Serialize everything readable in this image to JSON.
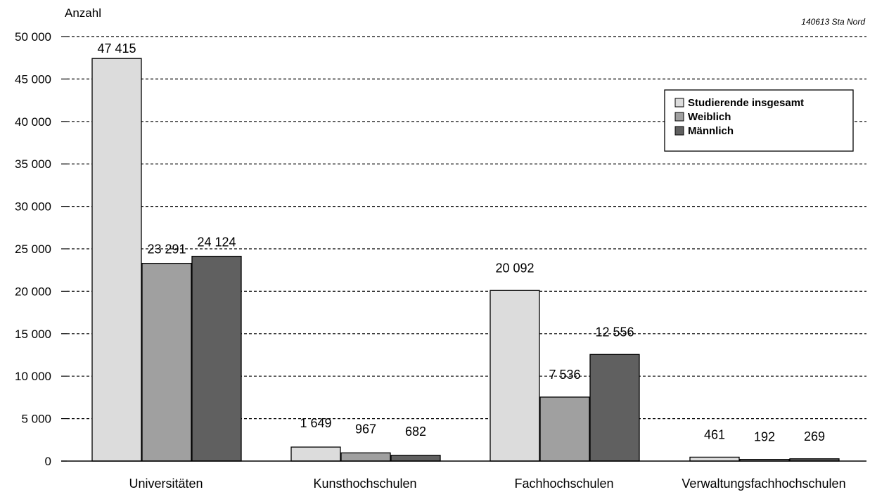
{
  "chart_data": {
    "type": "bar",
    "ylabel": "Anzahl",
    "source_note": "140613 Sta Nord",
    "categories": [
      "Universitäten",
      "Kunsthochschulen",
      "Fachhochschulen",
      "Verwaltungsfachhochschulen"
    ],
    "series": [
      {
        "name": "Studierende insgesamt",
        "values": [
          47415,
          1649,
          20092,
          461
        ],
        "labels": [
          "47 415",
          "1 649",
          "20 092",
          "461"
        ],
        "color": "#dcdcdc"
      },
      {
        "name": "Weiblich",
        "values": [
          23291,
          967,
          7536,
          192
        ],
        "labels": [
          "23 291",
          "967",
          "7 536",
          "192"
        ],
        "color": "#a0a0a0"
      },
      {
        "name": "Männlich",
        "values": [
          24124,
          682,
          12556,
          269
        ],
        "labels": [
          "24 124",
          "682",
          "12 556",
          "269"
        ],
        "color": "#606060"
      }
    ],
    "ylim": [
      0,
      50000
    ],
    "yticks": [
      0,
      5000,
      10000,
      15000,
      20000,
      25000,
      30000,
      35000,
      40000,
      45000,
      50000
    ],
    "ytick_labels": [
      "0",
      "5 000",
      "10 000",
      "15 000",
      "20 000",
      "25 000",
      "30 000",
      "35 000",
      "40 000",
      "45 000",
      "50 000"
    ],
    "grid": true,
    "legend_position": "top-right"
  }
}
